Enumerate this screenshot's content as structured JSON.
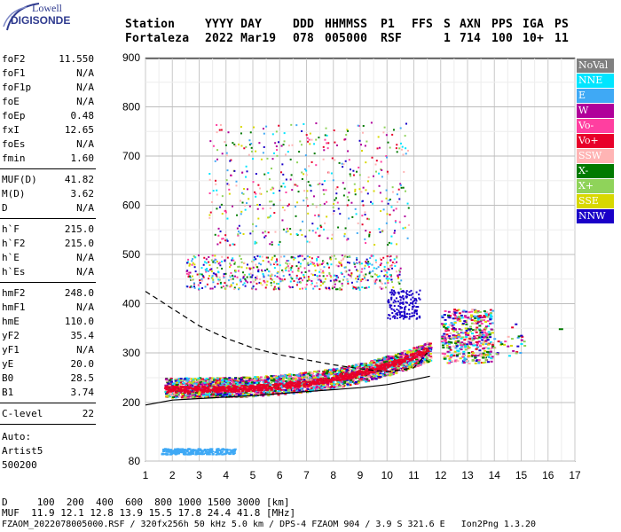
{
  "logo": {
    "line1": "Lowell",
    "line2": "DIGISONDE"
  },
  "header": {
    "labels": [
      "Station",
      "YYYY DAY",
      "DDD",
      "HHMMSS",
      "P1",
      "FFS",
      "S",
      "AXN",
      "PPS",
      "IGA",
      "PS"
    ],
    "values": [
      "Fortaleza",
      "2022 Mar19",
      "078",
      "005000",
      "RSF",
      "1",
      "714",
      "100",
      "10+",
      "11"
    ]
  },
  "params": {
    "g1": [
      [
        "foF2",
        "11.550"
      ],
      [
        "foF1",
        "N/A"
      ],
      [
        "foF1p",
        "N/A"
      ],
      [
        "foE",
        "N/A"
      ],
      [
        "foEp",
        "0.48"
      ],
      [
        "fxI",
        "12.65"
      ],
      [
        "foEs",
        "N/A"
      ],
      [
        "fmin",
        "1.60"
      ]
    ],
    "g2": [
      [
        "MUF(D)",
        "41.82"
      ],
      [
        "M(D)",
        "3.62"
      ],
      [
        "D",
        "N/A"
      ]
    ],
    "g3": [
      [
        "h`F",
        "215.0"
      ],
      [
        "h`F2",
        "215.0"
      ],
      [
        "h`E",
        "N/A"
      ],
      [
        "h`Es",
        "N/A"
      ]
    ],
    "g4": [
      [
        "hmF2",
        "248.0"
      ],
      [
        "hmF1",
        "N/A"
      ],
      [
        "hmE",
        "110.0"
      ],
      [
        "yF2",
        "35.4"
      ],
      [
        "yF1",
        "N/A"
      ],
      [
        "yE",
        "20.0"
      ],
      [
        "B0",
        "28.5"
      ],
      [
        "B1",
        "3.74"
      ]
    ],
    "g5": [
      [
        "C-level",
        "22"
      ]
    ]
  },
  "auto": {
    "line1": "Auto:",
    "line2": "Artist5",
    "line3": "500200"
  },
  "legend": [
    {
      "label": "NoVal",
      "color": "#808080"
    },
    {
      "label": "NNE",
      "color": "#00e5ff"
    },
    {
      "label": "E",
      "color": "#3fa9f5"
    },
    {
      "label": "W",
      "color": "#b0009a"
    },
    {
      "label": "Vo-",
      "color": "#ff3fa0"
    },
    {
      "label": "Vo+",
      "color": "#e8002a"
    },
    {
      "label": "SSW",
      "color": "#ffb4b4"
    },
    {
      "label": "X-",
      "color": "#007a00"
    },
    {
      "label": "X+",
      "color": "#8fd35a"
    },
    {
      "label": "SSE",
      "color": "#d8d800"
    },
    {
      "label": "NNW",
      "color": "#1a00c8"
    }
  ],
  "footer": {
    "d_line": "D     100  200  400  600  800 1000 1500 3000 [km]",
    "muf_line": "MUF  11.9 12.1 12.8 13.9 15.5 17.8 24.4 41.8 [MHz]",
    "file_line": "FZAOM_2022078005000.RSF / 320fx256h 50 kHz 5.0 km / DPS-4 FZAOM 904 / 3.9 S 321.6 E   Ion2Png 1.3.20"
  },
  "chart_data": {
    "type": "scatter",
    "xticks": [
      "1",
      "2",
      "3",
      "4",
      "5",
      "6",
      "7",
      "8",
      "9",
      "10",
      "11",
      "12",
      "13",
      "14",
      "15",
      "16",
      "17"
    ],
    "yticks": [
      "900",
      "800",
      "700",
      "600",
      "500",
      "400",
      "300",
      "200",
      "80"
    ],
    "xlim": [
      1,
      17
    ],
    "y_scale": "virtual height km, nonlinear below 200",
    "grid": true,
    "legend_position": "right",
    "trace_F2_o": {
      "x": [
        1.6,
        3,
        5,
        7,
        9,
        10,
        11,
        11.5
      ],
      "y": [
        228,
        232,
        236,
        240,
        252,
        262,
        285,
        315
      ]
    },
    "profile_dashed": {
      "x": [
        1,
        2,
        3,
        4,
        5,
        6,
        7,
        8,
        9,
        10,
        11,
        11.5
      ],
      "y": [
        425,
        390,
        355,
        330,
        310,
        296,
        286,
        276,
        268,
        262,
        270,
        300
      ]
    },
    "profile_solid": {
      "x": [
        1,
        2,
        3,
        5,
        7,
        9,
        10,
        11,
        11.6
      ],
      "y": [
        195,
        205,
        208,
        214,
        222,
        230,
        236,
        246,
        253
      ]
    }
  }
}
